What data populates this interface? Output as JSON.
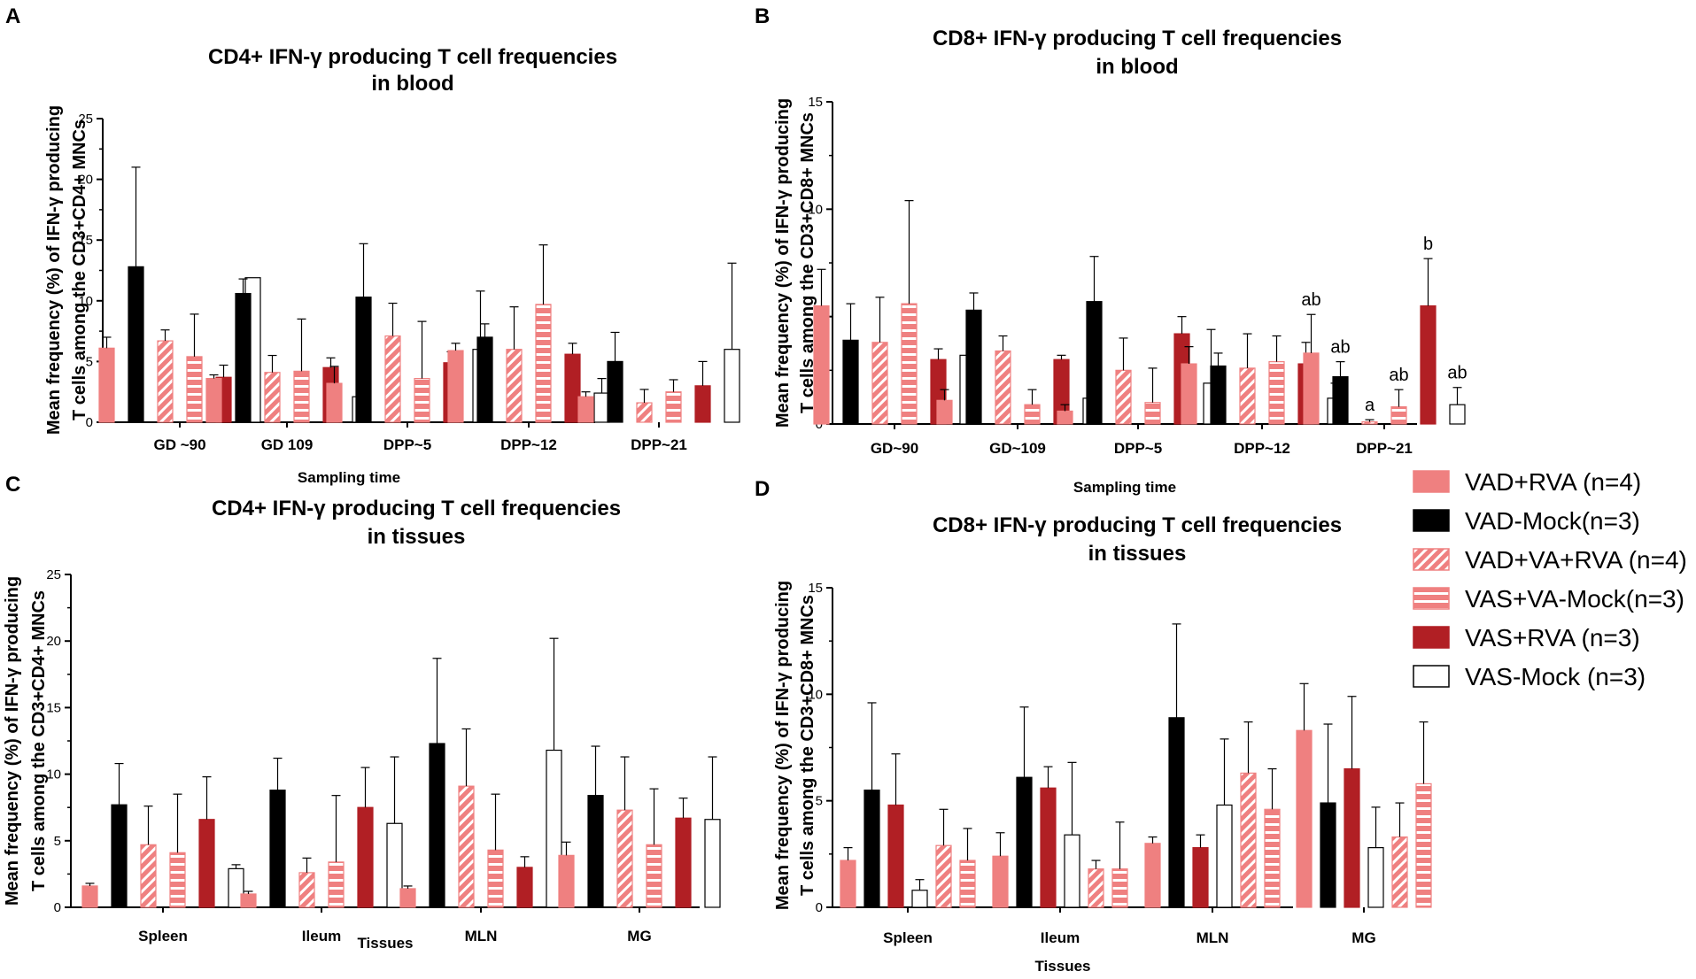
{
  "legend": [
    {
      "label": "VAD+RVA (n=4)",
      "fill": "#ef8080",
      "pattern": "solid"
    },
    {
      "label": "VAD-Mock(n=3)",
      "fill": "#000000",
      "pattern": "solid"
    },
    {
      "label": "VAD+VA+RVA (n=4)",
      "fill": "#ef8080",
      "pattern": "diagonal"
    },
    {
      "label": "VAS+VA-Mock(n=3)",
      "fill": "#ef8080",
      "pattern": "horizontal"
    },
    {
      "label": "VAS+RVA (n=3)",
      "fill": "#b11f24",
      "pattern": "solid"
    },
    {
      "label": "VAS-Mock (n=3)",
      "fill": "#ffffff",
      "pattern": "solid"
    }
  ],
  "colors": {
    "pink": "#ef8080",
    "black": "#000000",
    "darkred": "#b11f24",
    "white": "#ffffff",
    "axis": "#000000"
  },
  "chart_data": [
    {
      "panel": "A",
      "type": "bar",
      "title": [
        "CD4+ IFN-γ producing T cell frequencies",
        "in blood"
      ],
      "ylabel": [
        "Mean frequency (%) of IFN-γ producing",
        "T cells among the CD3+CD4+ MNCs"
      ],
      "xlabel": "Sampling time",
      "ylim": [
        0,
        25
      ],
      "yticks": [
        "0",
        "5",
        "10",
        "15",
        "20",
        "25"
      ],
      "categories": [
        "GD ~90",
        "GD 109",
        "DPP~5",
        "DPP~12",
        "DPP~21"
      ],
      "series": [
        {
          "name": "VAD+RVA (n=4)",
          "values": [
            6.1,
            3.6,
            3.2,
            5.9,
            2.1
          ],
          "errors": [
            0.9,
            0.3,
            1.4,
            0.6,
            0.4
          ]
        },
        {
          "name": "VAD-Mock(n=3)",
          "values": [
            12.8,
            10.6,
            10.3,
            7.0,
            5.0
          ],
          "errors": [
            8.2,
            1.2,
            4.4,
            1.1,
            2.4
          ]
        },
        {
          "name": "VAD+VA+RVA (n=4)",
          "values": [
            6.7,
            4.1,
            7.1,
            6.0,
            1.6
          ],
          "errors": [
            0.9,
            1.4,
            2.7,
            3.5,
            1.1
          ]
        },
        {
          "name": "VAS+VA-Mock(n=3)",
          "values": [
            5.4,
            4.2,
            3.6,
            9.7,
            2.5
          ],
          "errors": [
            3.5,
            4.3,
            4.7,
            4.9,
            1.0
          ]
        },
        {
          "name": "VAS+RVA (n=3)",
          "values": [
            3.7,
            4.5,
            4.9,
            5.6,
            3.0
          ],
          "errors": [
            1.0,
            0.8,
            0.9,
            0.9,
            2.0
          ]
        },
        {
          "name": "VAS-Mock (n=3)",
          "values": [
            11.9,
            2.1,
            6.0,
            2.4,
            6.0
          ],
          "errors": [
            0.0,
            2.1,
            4.8,
            1.2,
            7.1
          ]
        }
      ],
      "annotations": []
    },
    {
      "panel": "B",
      "type": "bar",
      "title": [
        "CD8+ IFN-γ producing T cell frequencies",
        "in blood"
      ],
      "ylabel": [
        "Mean frequency (%) of IFN-γ producing",
        "T cells among the CD3+CD8+ MNCs"
      ],
      "xlabel": "Sampling time",
      "ylim": [
        0,
        15
      ],
      "yticks": [
        "0",
        "5",
        "10",
        "15"
      ],
      "categories": [
        "GD~90",
        "GD~109",
        "DPP~5",
        "DPP~12",
        "DPP~21"
      ],
      "series": [
        {
          "name": "VAD+RVA (n=4)",
          "values": [
            5.5,
            1.1,
            0.6,
            2.8,
            3.3
          ],
          "errors": [
            1.7,
            0.5,
            0.3,
            0.8,
            1.8
          ]
        },
        {
          "name": "VAD-Mock(n=3)",
          "values": [
            3.9,
            5.3,
            5.7,
            2.7,
            2.2
          ],
          "errors": [
            1.7,
            0.8,
            2.1,
            0.6,
            0.7
          ]
        },
        {
          "name": "VAD+VA+RVA (n=4)",
          "values": [
            3.8,
            3.4,
            2.5,
            2.6,
            0.1
          ],
          "errors": [
            2.1,
            0.7,
            1.5,
            1.6,
            0.1
          ]
        },
        {
          "name": "VAS+VA-Mock(n=3)",
          "values": [
            5.6,
            0.9,
            1.0,
            2.9,
            0.8
          ],
          "errors": [
            4.8,
            0.7,
            1.6,
            1.2,
            0.8
          ]
        },
        {
          "name": "VAS+RVA (n=3)",
          "values": [
            3.0,
            3.0,
            4.2,
            2.8,
            5.5
          ],
          "errors": [
            0.5,
            0.2,
            0.8,
            1.0,
            2.2
          ]
        },
        {
          "name": "VAS-Mock (n=3)",
          "values": [
            3.2,
            1.2,
            1.9,
            1.2,
            0.9
          ],
          "errors": [
            0.0,
            1.1,
            2.5,
            0.7,
            0.8
          ]
        }
      ],
      "annotations": [
        {
          "category": 4,
          "series": 0,
          "text": "ab"
        },
        {
          "category": 4,
          "series": 1,
          "text": "ab"
        },
        {
          "category": 4,
          "series": 2,
          "text": "a"
        },
        {
          "category": 4,
          "series": 3,
          "text": "ab"
        },
        {
          "category": 4,
          "series": 4,
          "text": "b"
        },
        {
          "category": 4,
          "series": 5,
          "text": "ab"
        }
      ]
    },
    {
      "panel": "C",
      "type": "bar",
      "title": [
        "CD4+ IFN-γ producing T cell frequencies",
        "in tissues"
      ],
      "ylabel": [
        "Mean frequency (%) of IFN-γ producing",
        "T cells among the CD3+CD4+ MNCs"
      ],
      "xlabel": "Tissues",
      "ylim": [
        0,
        25
      ],
      "yticks": [
        "0",
        "5",
        "10",
        "15",
        "20",
        "25"
      ],
      "categories": [
        "Spleen",
        "Ileum",
        "MLN",
        "MG"
      ],
      "series": [
        {
          "name": "VAD+RVA (n=4)",
          "values": [
            1.6,
            1.0,
            1.4,
            3.9
          ],
          "errors": [
            0.2,
            0.2,
            0.2,
            1.0
          ]
        },
        {
          "name": "VAD-Mock(n=3)",
          "values": [
            7.7,
            8.8,
            12.3,
            8.4
          ],
          "errors": [
            3.1,
            2.4,
            6.4,
            3.7
          ]
        },
        {
          "name": "VAD+VA+RVA (n=4)",
          "values": [
            4.7,
            2.6,
            9.1,
            7.3
          ],
          "errors": [
            2.9,
            1.1,
            4.3,
            4.0
          ]
        },
        {
          "name": "VAS+VA-Mock(n=3)",
          "values": [
            4.1,
            3.4,
            4.3,
            4.7
          ],
          "errors": [
            4.4,
            5.0,
            4.2,
            4.2
          ]
        },
        {
          "name": "VAS+RVA (n=3)",
          "values": [
            6.6,
            7.5,
            3.0,
            6.7
          ],
          "errors": [
            3.2,
            3.0,
            0.8,
            1.5
          ]
        },
        {
          "name": "VAS-Mock (n=3)",
          "values": [
            2.9,
            6.3,
            11.8,
            6.6
          ],
          "errors": [
            0.3,
            5.0,
            8.4,
            4.7
          ]
        }
      ],
      "annotations": []
    },
    {
      "panel": "D",
      "type": "bar",
      "title": [
        "CD8+ IFN-γ producing T cell frequencies",
        "in tissues"
      ],
      "ylabel": [
        "Mean frequency (%) of IFN-γ producing",
        "T cells among the CD3+CD8+ MNCs"
      ],
      "xlabel": "Tissues",
      "ylim": [
        0,
        15
      ],
      "yticks": [
        "0",
        "5",
        "10",
        "15"
      ],
      "categories": [
        "Spleen",
        "Ileum",
        "MLN",
        "MG"
      ],
      "series": [
        {
          "name": "VAD+RVA (n=4)",
          "values": [
            2.2,
            2.4,
            3.0,
            8.3
          ],
          "errors": [
            0.6,
            1.1,
            0.3,
            2.2
          ]
        },
        {
          "name": "VAD-Mock(n=3)",
          "values": [
            5.5,
            6.1,
            8.9,
            4.9
          ],
          "errors": [
            4.1,
            3.3,
            4.4,
            3.7
          ]
        },
        {
          "name": "VAS+RVA (n=3)",
          "values": [
            4.8,
            5.6,
            2.8,
            6.5
          ],
          "errors": [
            2.4,
            1.0,
            0.6,
            3.4
          ]
        },
        {
          "name": "VAS-Mock (n=3)",
          "values": [
            0.8,
            3.4,
            4.8,
            2.8
          ],
          "errors": [
            0.5,
            3.4,
            3.1,
            1.9
          ]
        },
        {
          "name": "VAD+VA+RVA (n=4)",
          "values": [
            2.9,
            1.8,
            6.3,
            3.3
          ],
          "errors": [
            1.7,
            0.4,
            2.4,
            1.6
          ]
        },
        {
          "name": "VAS+VA-Mock(n=3)",
          "values": [
            2.2,
            1.8,
            4.6,
            5.8
          ],
          "errors": [
            1.5,
            2.2,
            1.9,
            2.9
          ]
        }
      ],
      "annotations": []
    }
  ]
}
